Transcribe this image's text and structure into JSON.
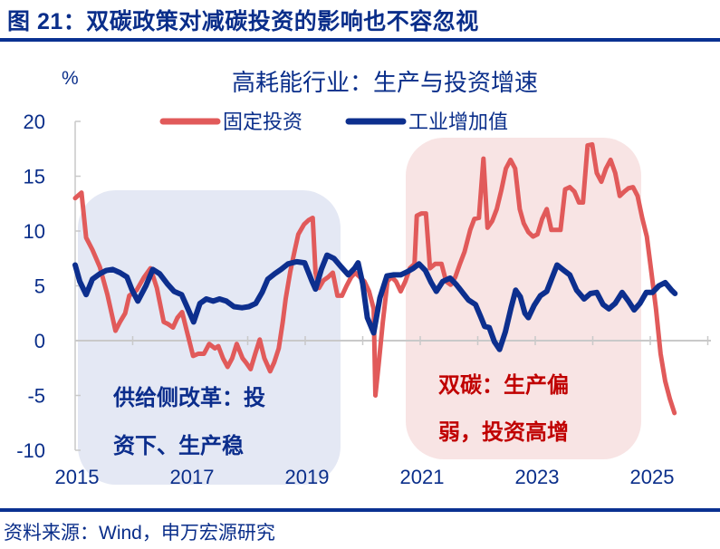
{
  "figure": {
    "title": "图 21：双碳政策对减碳投资的影响也不容忽视",
    "source": "资料来源：Wind，申万宏源研究"
  },
  "colors": {
    "brand_blue": "#0a3191",
    "series_investment": "#e15a5a",
    "series_industry": "#0d2f8e",
    "shade_blue": "#e4e8f4",
    "shade_red": "#f8e4e4",
    "note_blue": "#0b2d8c",
    "note_red": "#c00000",
    "axis": "#c9c9c9"
  },
  "annotations": {
    "left_box": {
      "line1": "供给侧改革：投",
      "line2": "资下、生产稳"
    },
    "right_box": {
      "line1": "双碳：生产偏",
      "line2": "弱，投资高增"
    }
  },
  "chart_data": {
    "type": "line",
    "title": "高耗能行业：生产与投资增速",
    "xlabel": "",
    "ylabel": "%",
    "ylim": [
      -10,
      20
    ],
    "yticks": [
      20,
      15,
      10,
      5,
      0,
      -5,
      -10
    ],
    "xlim": [
      2015.0,
      2026.05
    ],
    "xticks": [
      "2015",
      "2017",
      "2019",
      "2021",
      "2023",
      "2025"
    ],
    "grid": false,
    "legend_position": "top-center",
    "shaded_regions": [
      {
        "label": "供给侧改革：投资下、生产稳",
        "x_start": 2015.05,
        "x_end": 2019.6,
        "color": "#e4e8f4"
      },
      {
        "label": "双碳：生产偏弱，投资高增",
        "x_start": 2021.0,
        "x_end": 2024.9,
        "color": "#f8e4e4"
      }
    ],
    "series": [
      {
        "name": "固定投资",
        "color": "#e15a5a",
        "points": [
          [
            2015.0,
            13.0
          ],
          [
            2015.11,
            13.5
          ],
          [
            2015.19,
            9.4
          ],
          [
            2015.3,
            8.3
          ],
          [
            2015.43,
            6.7
          ],
          [
            2015.56,
            4.2
          ],
          [
            2015.7,
            0.9
          ],
          [
            2015.78,
            1.7
          ],
          [
            2015.87,
            2.5
          ],
          [
            2015.94,
            4.1
          ],
          [
            2016.07,
            4.6
          ],
          [
            2016.2,
            5.8
          ],
          [
            2016.31,
            6.6
          ],
          [
            2016.42,
            4.8
          ],
          [
            2016.54,
            1.7
          ],
          [
            2016.62,
            1.5
          ],
          [
            2016.7,
            1.2
          ],
          [
            2016.78,
            2.1
          ],
          [
            2016.86,
            2.6
          ],
          [
            2016.94,
            0.9
          ],
          [
            2017.05,
            -1.4
          ],
          [
            2017.14,
            -1.2
          ],
          [
            2017.24,
            -1.2
          ],
          [
            2017.33,
            -0.3
          ],
          [
            2017.43,
            -0.7
          ],
          [
            2017.49,
            -0.5
          ],
          [
            2017.57,
            -1.6
          ],
          [
            2017.65,
            -2.4
          ],
          [
            2017.73,
            -1.6
          ],
          [
            2017.81,
            -0.3
          ],
          [
            2017.91,
            -1.6
          ],
          [
            2017.97,
            -2.0
          ],
          [
            2018.05,
            -2.6
          ],
          [
            2018.13,
            -1.2
          ],
          [
            2018.21,
            0.1
          ],
          [
            2018.29,
            -1.6
          ],
          [
            2018.39,
            -2.8
          ],
          [
            2018.46,
            -2.0
          ],
          [
            2018.54,
            -0.7
          ],
          [
            2018.61,
            1.7
          ],
          [
            2018.66,
            3.8
          ],
          [
            2018.74,
            6.3
          ],
          [
            2018.82,
            8.3
          ],
          [
            2018.88,
            9.7
          ],
          [
            2018.98,
            10.6
          ],
          [
            2019.06,
            11.0
          ],
          [
            2019.13,
            11.2
          ],
          [
            2019.18,
            6.2
          ],
          [
            2019.24,
            4.8
          ],
          [
            2019.32,
            5.5
          ],
          [
            2019.4,
            5.8
          ],
          [
            2019.48,
            6.2
          ],
          [
            2019.56,
            4.1
          ],
          [
            2019.64,
            4.1
          ],
          [
            2019.72,
            5.0
          ],
          [
            2019.8,
            5.8
          ],
          [
            2019.87,
            6.2
          ],
          [
            2019.95,
            5.8
          ],
          [
            2020.03,
            5.4
          ],
          [
            2020.11,
            4.5
          ],
          [
            2020.19,
            2.9
          ],
          [
            2020.22,
            -5.0
          ],
          [
            2020.28,
            -2.0
          ],
          [
            2020.35,
            1.7
          ],
          [
            2020.43,
            5.4
          ],
          [
            2020.5,
            5.8
          ],
          [
            2020.58,
            5.4
          ],
          [
            2020.66,
            4.5
          ],
          [
            2020.74,
            5.4
          ],
          [
            2020.82,
            6.6
          ],
          [
            2020.9,
            7.0
          ],
          [
            2020.94,
            11.4
          ],
          [
            2021.02,
            11.6
          ],
          [
            2021.1,
            11.6
          ],
          [
            2021.17,
            6.6
          ],
          [
            2021.26,
            7.0
          ],
          [
            2021.37,
            7.0
          ],
          [
            2021.45,
            5.4
          ],
          [
            2021.53,
            5.1
          ],
          [
            2021.61,
            5.8
          ],
          [
            2021.69,
            7.0
          ],
          [
            2021.77,
            8.1
          ],
          [
            2021.87,
            10.1
          ],
          [
            2021.94,
            11.1
          ],
          [
            2022.02,
            11.2
          ],
          [
            2022.1,
            16.6
          ],
          [
            2022.17,
            10.3
          ],
          [
            2022.25,
            10.9
          ],
          [
            2022.33,
            12.0
          ],
          [
            2022.41,
            13.7
          ],
          [
            2022.49,
            15.7
          ],
          [
            2022.57,
            16.5
          ],
          [
            2022.65,
            15.7
          ],
          [
            2022.73,
            12.0
          ],
          [
            2022.8,
            10.7
          ],
          [
            2022.88,
            9.9
          ],
          [
            2022.96,
            9.5
          ],
          [
            2023.04,
            9.7
          ],
          [
            2023.12,
            11.1
          ],
          [
            2023.2,
            12.0
          ],
          [
            2023.28,
            10.1
          ],
          [
            2023.36,
            10.1
          ],
          [
            2023.44,
            10.1
          ],
          [
            2023.52,
            13.8
          ],
          [
            2023.6,
            14.0
          ],
          [
            2023.68,
            13.6
          ],
          [
            2023.76,
            12.6
          ],
          [
            2023.83,
            12.6
          ],
          [
            2023.91,
            17.8
          ],
          [
            2023.99,
            17.9
          ],
          [
            2024.07,
            15.3
          ],
          [
            2024.15,
            14.5
          ],
          [
            2024.23,
            15.7
          ],
          [
            2024.31,
            16.5
          ],
          [
            2024.39,
            15.3
          ],
          [
            2024.47,
            13.2
          ],
          [
            2024.55,
            13.6
          ],
          [
            2024.62,
            13.9
          ],
          [
            2024.7,
            14.0
          ],
          [
            2024.78,
            13.2
          ],
          [
            2024.86,
            11.2
          ],
          [
            2024.94,
            9.5
          ],
          [
            2025.02,
            6.2
          ],
          [
            2025.1,
            2.9
          ],
          [
            2025.18,
            -1.2
          ],
          [
            2025.26,
            -3.7
          ],
          [
            2025.34,
            -5.3
          ],
          [
            2025.42,
            -6.6
          ]
        ]
      },
      {
        "name": "工业增加值",
        "color": "#0d2f8e",
        "points": [
          [
            2015.0,
            6.9
          ],
          [
            2015.08,
            5.4
          ],
          [
            2015.19,
            4.2
          ],
          [
            2015.3,
            5.6
          ],
          [
            2015.43,
            6.1
          ],
          [
            2015.54,
            6.4
          ],
          [
            2015.65,
            6.5
          ],
          [
            2015.78,
            6.2
          ],
          [
            2015.9,
            5.8
          ],
          [
            2015.99,
            4.6
          ],
          [
            2016.09,
            3.6
          ],
          [
            2016.23,
            5.0
          ],
          [
            2016.35,
            6.5
          ],
          [
            2016.47,
            6.1
          ],
          [
            2016.6,
            5.2
          ],
          [
            2016.72,
            4.5
          ],
          [
            2016.85,
            4.2
          ],
          [
            2016.96,
            2.9
          ],
          [
            2017.06,
            1.7
          ],
          [
            2017.17,
            3.4
          ],
          [
            2017.28,
            3.8
          ],
          [
            2017.4,
            3.6
          ],
          [
            2017.51,
            3.8
          ],
          [
            2017.63,
            3.6
          ],
          [
            2017.76,
            3.1
          ],
          [
            2017.9,
            3.0
          ],
          [
            2018.02,
            3.1
          ],
          [
            2018.14,
            3.4
          ],
          [
            2018.25,
            4.4
          ],
          [
            2018.35,
            5.6
          ],
          [
            2018.47,
            6.1
          ],
          [
            2018.58,
            6.5
          ],
          [
            2018.7,
            7.0
          ],
          [
            2018.85,
            7.2
          ],
          [
            2018.99,
            7.1
          ],
          [
            2019.12,
            5.4
          ],
          [
            2019.18,
            4.7
          ],
          [
            2019.28,
            6.5
          ],
          [
            2019.38,
            7.8
          ],
          [
            2019.5,
            7.5
          ],
          [
            2019.63,
            6.7
          ],
          [
            2019.75,
            6.0
          ],
          [
            2019.86,
            6.6
          ],
          [
            2019.92,
            7.1
          ],
          [
            2020.0,
            5.2
          ],
          [
            2020.08,
            2.1
          ],
          [
            2020.19,
            0.7
          ],
          [
            2020.3,
            3.9
          ],
          [
            2020.42,
            5.9
          ],
          [
            2020.54,
            6.0
          ],
          [
            2020.66,
            6.0
          ],
          [
            2020.78,
            6.3
          ],
          [
            2020.88,
            6.6
          ],
          [
            2020.98,
            7.0
          ],
          [
            2021.09,
            6.4
          ],
          [
            2021.19,
            5.3
          ],
          [
            2021.28,
            4.5
          ],
          [
            2021.39,
            5.4
          ],
          [
            2021.52,
            5.7
          ],
          [
            2021.63,
            5.1
          ],
          [
            2021.75,
            4.3
          ],
          [
            2021.84,
            3.7
          ],
          [
            2021.96,
            3.3
          ],
          [
            2022.05,
            2.2
          ],
          [
            2022.12,
            1.3
          ],
          [
            2022.2,
            1.2
          ],
          [
            2022.29,
            -0.1
          ],
          [
            2022.38,
            -0.8
          ],
          [
            2022.48,
            0.8
          ],
          [
            2022.58,
            3.0
          ],
          [
            2022.66,
            4.6
          ],
          [
            2022.74,
            4.0
          ],
          [
            2022.82,
            2.5
          ],
          [
            2022.88,
            2.1
          ],
          [
            2022.98,
            3.2
          ],
          [
            2023.09,
            4.1
          ],
          [
            2023.2,
            4.5
          ],
          [
            2023.29,
            5.7
          ],
          [
            2023.38,
            6.9
          ],
          [
            2023.5,
            6.4
          ],
          [
            2023.6,
            6.0
          ],
          [
            2023.72,
            4.6
          ],
          [
            2023.85,
            3.8
          ],
          [
            2023.96,
            4.3
          ],
          [
            2024.07,
            4.4
          ],
          [
            2024.18,
            3.3
          ],
          [
            2024.28,
            2.9
          ],
          [
            2024.39,
            3.4
          ],
          [
            2024.51,
            4.4
          ],
          [
            2024.62,
            3.6
          ],
          [
            2024.72,
            2.8
          ],
          [
            2024.82,
            3.4
          ],
          [
            2024.93,
            4.4
          ],
          [
            2025.04,
            4.4
          ],
          [
            2025.15,
            5.0
          ],
          [
            2025.26,
            5.3
          ],
          [
            2025.37,
            4.6
          ],
          [
            2025.43,
            4.3
          ]
        ]
      }
    ]
  }
}
